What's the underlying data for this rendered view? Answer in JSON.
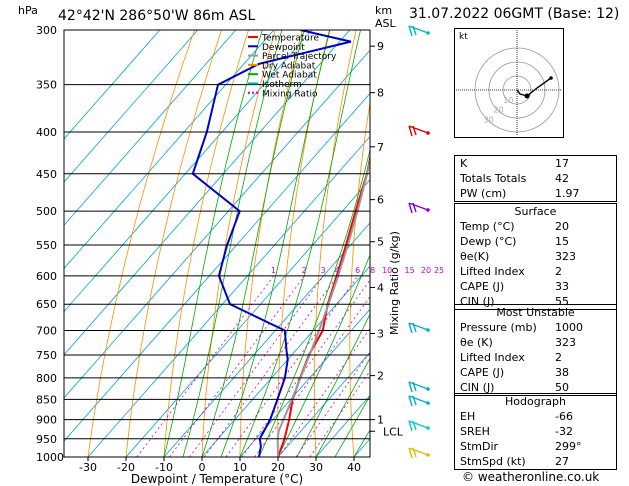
{
  "header": {
    "location": "42°42'N  286°50'W  86m  ASL",
    "datetime": "31.07.2022  06GMT  (Base: 12)",
    "p_unit": "hPa",
    "km_label": "km",
    "asl_label": "ASL"
  },
  "legend": [
    {
      "label": "Temperature",
      "color": "#ff0000"
    },
    {
      "label": "Dewpoint",
      "color": "#0000cc"
    },
    {
      "label": "Parcel Trajectory",
      "color": "#999999"
    },
    {
      "label": "Dry Adiabat",
      "color": "#ff8c00"
    },
    {
      "label": "Wet Adiabat",
      "color": "#00aa00"
    },
    {
      "label": "Isotherm",
      "color": "#00a0e0"
    },
    {
      "label": "Mixing Ratio",
      "color": "#cc00cc"
    }
  ],
  "chart_data": {
    "type": "line",
    "xlabel": "Dewpoint / Temperature (°C)",
    "y2label": "Mixing Ratio (g/kg)",
    "pressure_ticks": [
      300,
      350,
      400,
      450,
      500,
      550,
      600,
      650,
      700,
      750,
      800,
      850,
      900,
      950,
      1000
    ],
    "temp_ticks": [
      -30,
      -20,
      -10,
      0,
      10,
      20,
      30,
      40
    ],
    "xlim": [
      -40,
      40
    ],
    "ylim": [
      1000,
      300
    ],
    "height_ticks": [
      {
        "label": "9",
        "p": 314
      },
      {
        "label": "8",
        "p": 358
      },
      {
        "label": "7",
        "p": 417
      },
      {
        "label": "6",
        "p": 484
      },
      {
        "label": "5",
        "p": 545
      },
      {
        "label": "4",
        "p": 620
      },
      {
        "label": "3",
        "p": 706
      },
      {
        "label": "2",
        "p": 795
      },
      {
        "label": "1",
        "p": 900
      },
      {
        "label": "LCL",
        "p": 930
      }
    ],
    "mixing_ratio_labels": [
      "1",
      "2",
      "3",
      "4",
      "6",
      "8",
      "10",
      "15",
      "20",
      "25"
    ],
    "series": [
      {
        "name": "Temperature",
        "color": "#ff0000",
        "p": [
          1000,
          950,
          900,
          850,
          800,
          750,
          700,
          650,
          600,
          550,
          500,
          450,
          400,
          350,
          300
        ],
        "t": [
          20,
          17.5,
          14.3,
          10.5,
          7.5,
          4.5,
          2.5,
          -2.3,
          -6.5,
          -11.2,
          -16.5,
          -22.2,
          -29.6,
          -36.3,
          -45.2
        ]
      },
      {
        "name": "Dewpoint",
        "color": "#0000cc",
        "p": [
          1000,
          970,
          950,
          900,
          850,
          800,
          760,
          740,
          700,
          650,
          600,
          550,
          500,
          450,
          400,
          350,
          330,
          310,
          300
        ],
        "t": [
          15,
          13,
          11,
          9.3,
          6.5,
          3.5,
          0,
          -2.5,
          -7.5,
          -28,
          -37.5,
          -42.5,
          -47,
          -68,
          -74,
          -82,
          -76,
          -57,
          -73
        ]
      },
      {
        "name": "Parcel Trajectory",
        "color": "#999999",
        "p": [
          1000,
          950,
          930,
          900,
          850,
          800,
          750,
          700,
          650,
          600,
          550,
          500,
          450,
          400,
          350,
          300
        ],
        "t": [
          20,
          15.7,
          14.2,
          12.8,
          10.3,
          7.6,
          4.7,
          1.5,
          -2.1,
          -6.1,
          -10.7,
          -16.0,
          -22.1,
          -29.3,
          -37.9,
          -48.3
        ]
      }
    ]
  },
  "indices": [
    {
      "label": "K",
      "value": "17"
    },
    {
      "label": "Totals Totals",
      "value": "42"
    },
    {
      "label": "PW (cm)",
      "value": "1.97"
    }
  ],
  "surface": {
    "title": "Surface",
    "rows": [
      {
        "label": "Temp (°C)",
        "value": "20"
      },
      {
        "label": "Dewp (°C)",
        "value": "15"
      },
      {
        "label": "θe(K)",
        "value": "323"
      },
      {
        "label": "Lifted Index",
        "value": "2"
      },
      {
        "label": "CAPE (J)",
        "value": "33"
      },
      {
        "label": "CIN (J)",
        "value": "55"
      }
    ]
  },
  "unstable": {
    "title": "Most Unstable",
    "rows": [
      {
        "label": "Pressure (mb)",
        "value": "1000"
      },
      {
        "label": "θe (K)",
        "value": "323"
      },
      {
        "label": "Lifted Index",
        "value": "2"
      },
      {
        "label": "CAPE (J)",
        "value": "38"
      },
      {
        "label": "CIN (J)",
        "value": "50"
      }
    ]
  },
  "hodograph": {
    "title": "Hodograph",
    "kt_label": "kt",
    "ring_labels": [
      "10",
      "20",
      "30"
    ],
    "rows": [
      {
        "label": "EH",
        "value": "-66"
      },
      {
        "label": "SREH",
        "value": "-32"
      },
      {
        "label": "StmDir",
        "value": "299°"
      },
      {
        "label": "StmSpd (kt)",
        "value": "27"
      }
    ]
  },
  "credit": "© weatheronline.co.uk"
}
